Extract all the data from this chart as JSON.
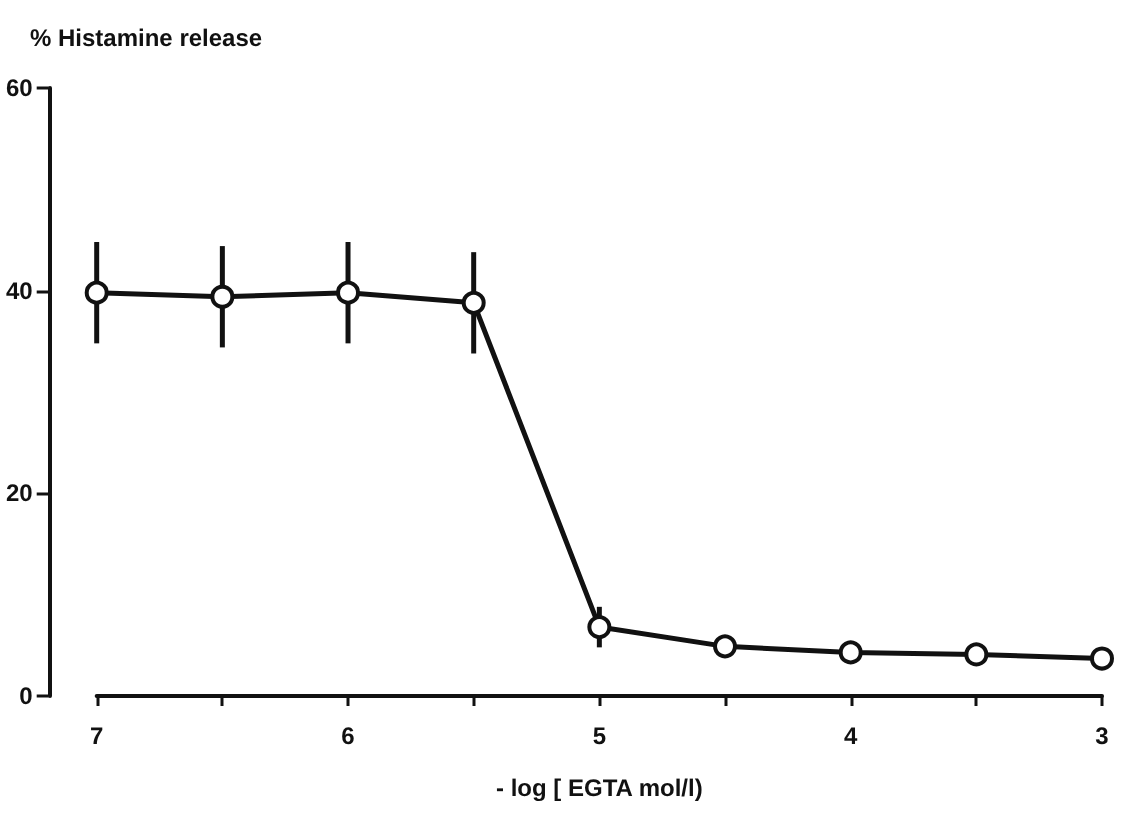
{
  "chart_data": {
    "type": "line",
    "ylabel": "% Histamine release",
    "xlabel": "- log [ EGTA mol/l)",
    "x": [
      7,
      6.5,
      6,
      5.5,
      5,
      4.5,
      4,
      3.5,
      3
    ],
    "series": [
      {
        "color": "#111111",
        "values": [
          39.8,
          39.4,
          39.8,
          38.8,
          6.8,
          4.9,
          4.3,
          4.1,
          3.7
        ],
        "errors": [
          5,
          5,
          5,
          5,
          2,
          1,
          1,
          1,
          1
        ]
      }
    ],
    "xlim": [
      7,
      3
    ],
    "xticks": [
      7,
      {
        "value": 6.5,
        "label": null
      },
      6,
      {
        "value": 5.5,
        "label": null
      },
      5,
      {
        "value": 4.5,
        "label": null
      },
      4,
      {
        "value": 3.5,
        "label": null
      },
      3
    ],
    "ylim": [
      0,
      60
    ],
    "yticks": [
      0,
      20,
      40,
      60
    ],
    "grid": false,
    "legend": false,
    "marker": "circle",
    "line_style": "solid"
  }
}
